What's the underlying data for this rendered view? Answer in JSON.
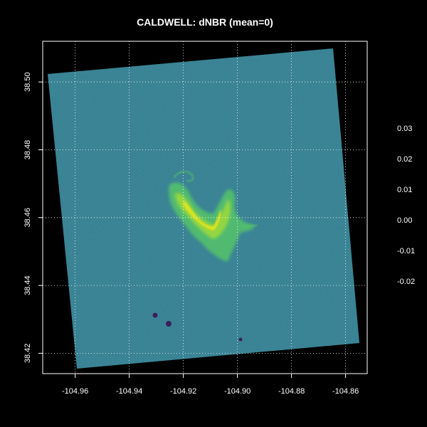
{
  "chart_data": {
    "type": "heatmap",
    "title": "CALDWELL: dNBR (mean=0)",
    "xlabel": "",
    "ylabel": "",
    "x_ticks": [
      -104.96,
      -104.94,
      -104.92,
      -104.9,
      -104.88,
      -104.86
    ],
    "x_tick_labels": [
      "-104.96",
      "-104.94",
      "-104.92",
      "-104.90",
      "-104.88",
      "-104.86"
    ],
    "y_ticks": [
      38.42,
      38.44,
      38.46,
      38.48,
      38.5
    ],
    "y_tick_labels": [
      "38.42",
      "38.44",
      "38.46",
      "38.48",
      "38.50"
    ],
    "xlim": [
      -104.972,
      -104.852
    ],
    "ylim": [
      38.414,
      38.512
    ],
    "grid": true,
    "colormap": "viridis",
    "background_color": "#000000",
    "grid_color": "#ffffff",
    "colorbar": {
      "ticks": [
        0.03,
        0.02,
        0.01,
        0.0,
        -0.01,
        -0.02
      ],
      "labels": [
        "0.03",
        "0.02",
        "0.01",
        "0.00",
        "-0.01",
        "-0.02"
      ],
      "placement": "right"
    },
    "raster_base_color": "#2f7a8c",
    "burn_scar_colors": [
      "#55c46a",
      "#9bd93c",
      "#e3e51a"
    ],
    "dark_spot_color": "#3b1f5a"
  }
}
